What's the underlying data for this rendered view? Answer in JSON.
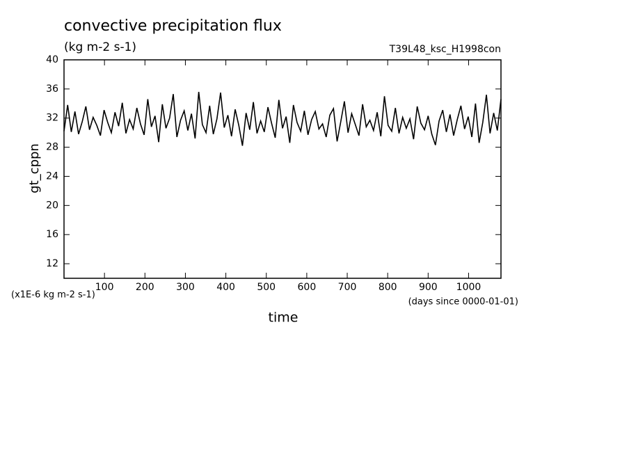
{
  "chart_data": {
    "type": "line",
    "title": "convective precipitation flux",
    "subtitle": "(kg m-2 s-1)",
    "run_label": "T39L48_ksc_H1998con",
    "y_label": "gt_cppn",
    "y_unit_label": "(x1E-6 kg m-2 s-1)",
    "x_unit_label": "(days since 0000-01-01)",
    "x_label": "time",
    "xlim": [
      0,
      1080
    ],
    "xticks": [
      100,
      200,
      300,
      400,
      500,
      600,
      700,
      800,
      900,
      1000
    ],
    "ylim": [
      10,
      40
    ],
    "yticks": [
      12,
      16,
      20,
      24,
      28,
      32,
      36,
      40
    ],
    "x": [
      0,
      9,
      18,
      27,
      36,
      45,
      54,
      63,
      72,
      81,
      90,
      99,
      108,
      117,
      126,
      135,
      144,
      153,
      162,
      171,
      180,
      189,
      198,
      207,
      216,
      225,
      234,
      243,
      252,
      261,
      270,
      279,
      288,
      297,
      306,
      315,
      324,
      333,
      342,
      351,
      360,
      369,
      378,
      387,
      396,
      405,
      414,
      423,
      432,
      441,
      450,
      459,
      468,
      477,
      486,
      495,
      504,
      513,
      522,
      531,
      540,
      549,
      558,
      567,
      576,
      585,
      594,
      603,
      612,
      621,
      630,
      639,
      648,
      657,
      666,
      675,
      684,
      693,
      702,
      711,
      720,
      729,
      738,
      747,
      756,
      765,
      774,
      783,
      792,
      801,
      810,
      819,
      828,
      837,
      846,
      855,
      864,
      873,
      882,
      891,
      900,
      909,
      918,
      927,
      936,
      945,
      954,
      963,
      972,
      981,
      990,
      999,
      1008,
      1017,
      1026,
      1035,
      1044,
      1053,
      1062,
      1071,
      1080
    ],
    "series": [
      {
        "name": "gt_cppn",
        "color": "#000000",
        "values": [
          30.2,
          33.8,
          30.1,
          32.9,
          29.8,
          31.5,
          33.6,
          30.4,
          32.1,
          31.0,
          29.6,
          33.1,
          31.4,
          30.0,
          32.8,
          30.9,
          34.1,
          29.9,
          31.8,
          30.5,
          33.4,
          31.2,
          29.7,
          34.6,
          30.8,
          32.3,
          28.7,
          33.9,
          30.6,
          32.0,
          35.3,
          29.4,
          31.7,
          33.0,
          30.3,
          32.6,
          29.2,
          35.6,
          31.1,
          30.0,
          33.7,
          29.8,
          31.9,
          35.5,
          30.7,
          32.4,
          29.5,
          33.2,
          31.0,
          28.2,
          32.7,
          30.4,
          34.2,
          29.9,
          31.6,
          30.1,
          33.5,
          31.3,
          29.3,
          34.5,
          30.6,
          32.2,
          28.6,
          33.8,
          31.4,
          30.2,
          33.0,
          29.7,
          31.8,
          32.9,
          30.5,
          31.2,
          29.4,
          32.4,
          33.3,
          28.8,
          31.5,
          34.3,
          30.0,
          32.6,
          31.1,
          29.6,
          33.9,
          30.8,
          31.7,
          30.3,
          32.8,
          29.5,
          35.0,
          31.0,
          30.2,
          33.4,
          29.9,
          32.1,
          30.6,
          31.9,
          29.1,
          33.6,
          31.3,
          30.4,
          32.3,
          29.8,
          28.3,
          31.6,
          33.1,
          30.1,
          32.5,
          29.6,
          31.8,
          33.7,
          30.5,
          32.2,
          29.4,
          34.0,
          28.6,
          31.4,
          35.2,
          29.9,
          32.7,
          30.3,
          34.6
        ]
      }
    ]
  }
}
